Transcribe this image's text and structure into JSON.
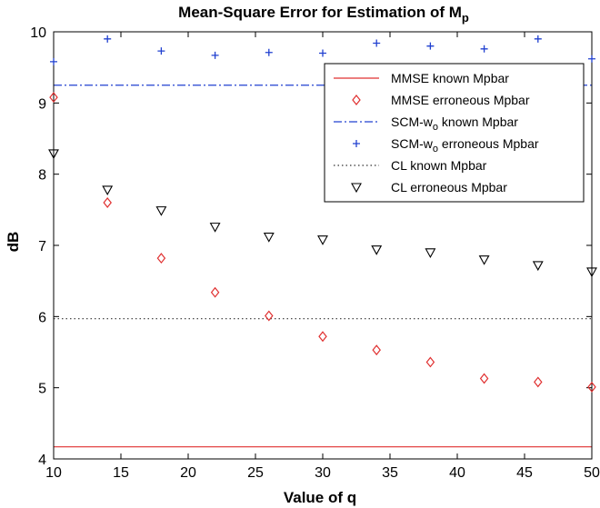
{
  "chart_data": {
    "type": "scatter",
    "title": "Mean-Square Error for Estimation of M",
    "title_subscript": "p",
    "xlabel": "Value of q",
    "ylabel": "dB",
    "xlim": [
      10,
      50
    ],
    "ylim": [
      4,
      10
    ],
    "xticks": [
      10,
      15,
      20,
      25,
      30,
      35,
      40,
      45,
      50
    ],
    "yticks": [
      4,
      5,
      6,
      7,
      8,
      9,
      10
    ],
    "grid": false,
    "legend_position": "top-right",
    "series": [
      {
        "name": "MMSE known Mpbar",
        "kind": "hline",
        "y": 4.17,
        "color": "#e03030",
        "dash": "solid"
      },
      {
        "name": "MMSE erroneous Mpbar",
        "kind": "markers",
        "marker": "diamond",
        "color": "#e03030",
        "x": [
          10,
          14,
          18,
          22,
          26,
          30,
          34,
          38,
          42,
          46,
          50
        ],
        "y": [
          9.08,
          7.6,
          6.82,
          6.34,
          6.01,
          5.72,
          5.53,
          5.36,
          5.13,
          5.08,
          5.01
        ]
      },
      {
        "name": "SCM-w",
        "name_subscript": "o",
        "name_suffix": " known Mpbar",
        "kind": "hline",
        "y": 9.25,
        "color": "#2040d0",
        "dash": "dashdot"
      },
      {
        "name": "SCM-w",
        "name_subscript": "o",
        "name_suffix": " erroneous Mpbar",
        "kind": "markers",
        "marker": "plus",
        "color": "#2040d0",
        "x": [
          10,
          14,
          18,
          22,
          26,
          30,
          34,
          38,
          42,
          46,
          50
        ],
        "y": [
          9.58,
          9.9,
          9.73,
          9.67,
          9.71,
          9.7,
          9.84,
          9.8,
          9.76,
          9.9,
          9.62
        ]
      },
      {
        "name": "CL known Mpbar",
        "kind": "hline",
        "y": 5.97,
        "color": "#333333",
        "dash": "dotted"
      },
      {
        "name": "CL erroneous Mpbar",
        "kind": "markers",
        "marker": "triangle-down",
        "color": "#000000",
        "x": [
          10,
          14,
          18,
          22,
          26,
          30,
          34,
          38,
          42,
          46,
          50
        ],
        "y": [
          8.29,
          7.78,
          7.49,
          7.26,
          7.12,
          7.08,
          6.94,
          6.9,
          6.8,
          6.72,
          6.63
        ]
      }
    ]
  }
}
